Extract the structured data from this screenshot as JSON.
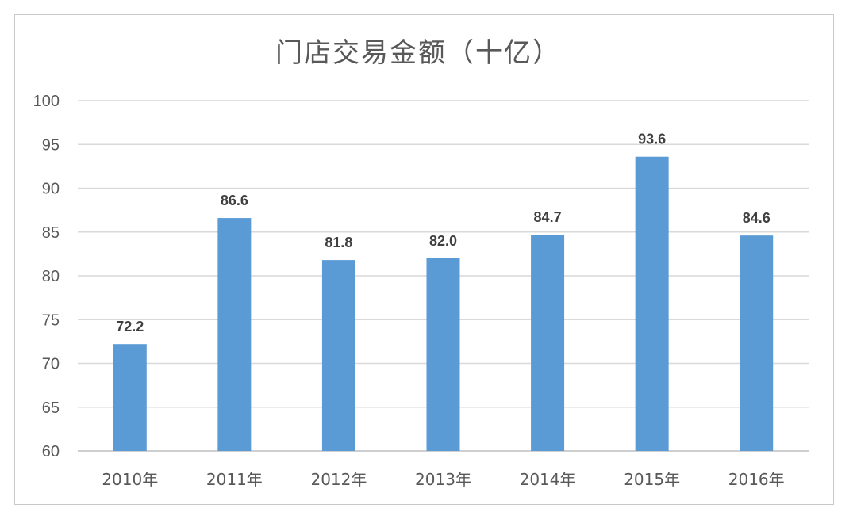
{
  "chart_data": {
    "type": "bar",
    "title": "门店交易金额（十亿）",
    "xlabel": "",
    "ylabel": "",
    "categories": [
      "2010年",
      "2011年",
      "2012年",
      "2013年",
      "2014年",
      "2015年",
      "2016年"
    ],
    "values": [
      72.2,
      86.6,
      81.8,
      82.0,
      84.7,
      93.6,
      84.6
    ],
    "data_labels": [
      "72.2",
      "86.6",
      "81.8",
      "82.0",
      "84.7",
      "93.6",
      "84.6"
    ],
    "ylim": [
      60,
      100
    ],
    "yticks": [
      60,
      65,
      70,
      75,
      80,
      85,
      90,
      95,
      100
    ],
    "grid": true,
    "legend": "none",
    "bar_color": "#5b9bd5"
  }
}
